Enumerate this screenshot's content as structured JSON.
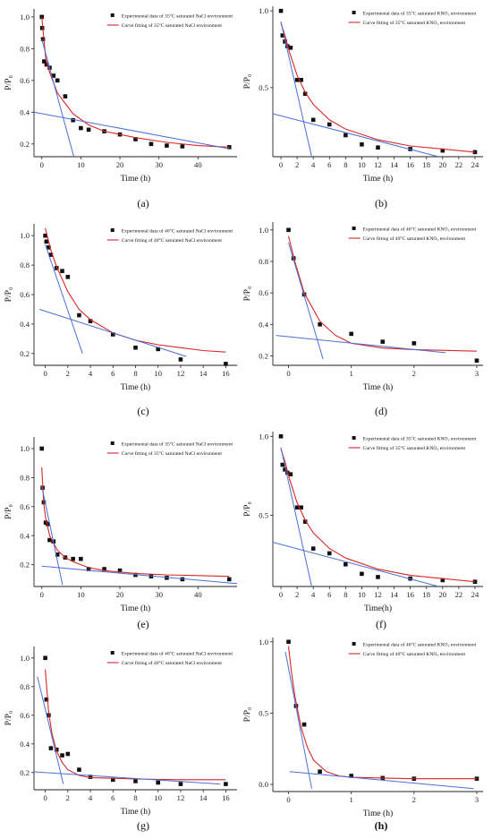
{
  "chart_data": [
    {
      "panel_label": "(a)",
      "type": "scatter",
      "xlabel": "Time (h)",
      "ylabel": "P/P₀",
      "xlim": [
        -2,
        50
      ],
      "ylim": [
        0.12,
        1.05
      ],
      "xticks": [
        0,
        10,
        20,
        30,
        40
      ],
      "yticks": [
        0.2,
        0.4,
        0.6,
        0.8,
        1.0
      ],
      "tick_decimals": 1,
      "legend": [
        "Experimental data of 35°C saturated NaCl environment",
        "Curve fitting of 35°C saturated NaCl environment"
      ],
      "legend_placement": "top-right",
      "series": [
        {
          "name": "Experimental data of 35°C saturated NaCl environment",
          "kind": "points",
          "x": [
            0,
            0.1,
            0.3,
            0.6,
            1.2,
            2,
            3,
            4,
            6,
            8,
            10,
            12,
            16,
            20,
            24,
            28,
            32,
            36,
            48
          ],
          "y": [
            1.0,
            0.93,
            0.86,
            0.72,
            0.7,
            0.68,
            0.63,
            0.6,
            0.5,
            0.35,
            0.3,
            0.29,
            0.28,
            0.26,
            0.23,
            0.2,
            0.19,
            0.185,
            0.18
          ]
        },
        {
          "name": "Curve fitting of 35°C saturated NaCl environment",
          "kind": "line",
          "x": [
            0,
            1,
            2,
            4,
            8,
            12,
            16,
            24,
            32,
            40,
            48
          ],
          "y": [
            1.0,
            0.74,
            0.65,
            0.52,
            0.39,
            0.32,
            0.28,
            0.24,
            0.21,
            0.19,
            0.18
          ]
        },
        {
          "kind": "tangent",
          "x": [
            0,
            8.2
          ],
          "y": [
            0.86,
            0.12
          ]
        },
        {
          "kind": "tangent",
          "x": [
            -2,
            48
          ],
          "y": [
            0.4,
            0.17
          ]
        }
      ]
    },
    {
      "panel_label": "(b)",
      "type": "scatter",
      "xlabel": "Time (h)",
      "ylabel": "P/P₀",
      "xlim": [
        -1,
        25
      ],
      "ylim": [
        0.05,
        1.03
      ],
      "xticks": [
        0,
        2,
        4,
        6,
        8,
        10,
        12,
        14,
        16,
        18,
        20,
        22,
        24
      ],
      "yticks": [
        0.5,
        1.0
      ],
      "tick_decimals": 1,
      "legend": [
        "Experimental data of 35°C saturated KNO₃ environment",
        "Curve fitting of 35°C saturated KNO₃ environment"
      ],
      "legend_placement": "top-right",
      "series": [
        {
          "name": "Experimental data of 35°C saturated KNO₃ environment",
          "kind": "points",
          "x": [
            0,
            0.2,
            0.5,
            0.8,
            1.2,
            2,
            2.5,
            3,
            4,
            6,
            8,
            10,
            12,
            16,
            20,
            24
          ],
          "y": [
            1.0,
            0.84,
            0.8,
            0.77,
            0.76,
            0.55,
            0.55,
            0.46,
            0.29,
            0.26,
            0.19,
            0.13,
            0.11,
            0.1,
            0.09,
            0.08
          ]
        },
        {
          "name": "Curve fitting of 35°C saturated KNO₃ environment",
          "kind": "line",
          "x": [
            0,
            0.5,
            1,
            2,
            3,
            4,
            6,
            8,
            12,
            16,
            20,
            24
          ],
          "y": [
            0.92,
            0.84,
            0.74,
            0.58,
            0.47,
            0.39,
            0.29,
            0.23,
            0.16,
            0.12,
            0.1,
            0.08
          ]
        },
        {
          "kind": "tangent",
          "x": [
            0,
            3.8
          ],
          "y": [
            0.93,
            0.05
          ]
        },
        {
          "kind": "tangent",
          "x": [
            -1,
            19.5
          ],
          "y": [
            0.33,
            0.05
          ]
        }
      ]
    },
    {
      "panel_label": "(c)",
      "type": "scatter",
      "xlabel": "Time (h)",
      "ylabel": "P/P₀",
      "xlim": [
        -1,
        17
      ],
      "ylim": [
        0.12,
        1.08
      ],
      "xticks": [
        0,
        2,
        4,
        6,
        8,
        10,
        12,
        14,
        16
      ],
      "yticks": [
        0.2,
        0.4,
        0.6,
        0.8,
        1.0
      ],
      "tick_decimals": 1,
      "legend": [
        "Experimental data of 40°C saturated NaCl environment",
        "Curve fitting of 40°C saturated NaCl environment"
      ],
      "legend_placement": "top-right",
      "series": [
        {
          "name": "Experimental data of 40°C saturated NaCl environment",
          "kind": "points",
          "x": [
            0,
            0.1,
            0.3,
            0.5,
            1,
            1.5,
            2,
            3,
            4,
            6,
            8,
            10,
            12,
            16
          ],
          "y": [
            1.0,
            0.96,
            0.92,
            0.87,
            0.78,
            0.76,
            0.72,
            0.46,
            0.42,
            0.33,
            0.24,
            0.23,
            0.16,
            0.13
          ]
        },
        {
          "name": "Curve fitting of 40°C saturated NaCl environment",
          "kind": "line",
          "x": [
            0,
            0.5,
            1,
            2,
            3,
            4,
            6,
            8,
            10,
            12,
            14,
            16
          ],
          "y": [
            1.05,
            0.9,
            0.79,
            0.62,
            0.5,
            0.43,
            0.34,
            0.29,
            0.26,
            0.24,
            0.22,
            0.21
          ]
        },
        {
          "kind": "tangent",
          "x": [
            0,
            3.3
          ],
          "y": [
            0.94,
            0.2
          ]
        },
        {
          "kind": "tangent",
          "x": [
            -0.5,
            12.5
          ],
          "y": [
            0.5,
            0.18
          ]
        }
      ]
    },
    {
      "panel_label": "(d)",
      "type": "scatter",
      "xlabel": "Time (h)",
      "ylabel": "P/P₀",
      "xlim": [
        -0.25,
        3.1
      ],
      "ylim": [
        0.14,
        1.05
      ],
      "xticks": [
        0,
        1,
        2,
        3
      ],
      "yticks": [
        0.2,
        0.4,
        0.6,
        0.8,
        1.0
      ],
      "tick_decimals": 1,
      "legend": [
        "Experimental data of 40°C saturated KNO₃ environment",
        "Curve fitting of 40°C saturated KNO₃ environment"
      ],
      "legend_placement": "top-right",
      "series": [
        {
          "name": "Experimental data of 40°C saturated KNO₃ environment",
          "kind": "points",
          "x": [
            0,
            0.08,
            0.25,
            0.5,
            1.0,
            1.5,
            2.0,
            3.0
          ],
          "y": [
            1.0,
            0.82,
            0.59,
            0.4,
            0.34,
            0.29,
            0.28,
            0.17
          ]
        },
        {
          "name": "Curve fitting of 40°C saturated KNO₃ environment",
          "kind": "line",
          "x": [
            0,
            0.1,
            0.25,
            0.5,
            0.75,
            1.0,
            1.5,
            2.0,
            2.5,
            3.0
          ],
          "y": [
            0.96,
            0.8,
            0.6,
            0.42,
            0.33,
            0.28,
            0.25,
            0.24,
            0.235,
            0.23
          ]
        },
        {
          "kind": "tangent",
          "x": [
            0,
            0.55
          ],
          "y": [
            0.92,
            0.18
          ]
        },
        {
          "kind": "tangent",
          "x": [
            -0.2,
            2.5
          ],
          "y": [
            0.33,
            0.22
          ]
        }
      ]
    },
    {
      "panel_label": "(e)",
      "type": "scatter",
      "xlabel": "Time (h)",
      "ylabel": "P/P₀",
      "xlim": [
        -2,
        50
      ],
      "ylim": [
        0.05,
        1.08
      ],
      "xticks": [
        0,
        10,
        20,
        30,
        40
      ],
      "yticks": [
        0.2,
        0.4,
        0.6,
        0.8,
        1.0
      ],
      "tick_decimals": 1,
      "legend": [
        "Experimental data of 35°C saturated NaCl environment",
        "Curve fitting of 35°C saturated NaCl environment"
      ],
      "legend_placement": "top-right",
      "series": [
        {
          "name": "Experimental data of 35°C saturated NaCl environment",
          "kind": "points",
          "x": [
            0,
            0.2,
            0.5,
            1,
            1.5,
            2,
            3,
            4,
            6,
            8,
            10,
            12,
            16,
            20,
            24,
            28,
            32,
            36,
            48
          ],
          "y": [
            1.0,
            0.73,
            0.63,
            0.49,
            0.48,
            0.37,
            0.36,
            0.27,
            0.25,
            0.24,
            0.24,
            0.17,
            0.17,
            0.16,
            0.13,
            0.12,
            0.11,
            0.1,
            0.1
          ]
        },
        {
          "name": "Curve fitting of 35°C saturated NaCl environment",
          "kind": "line",
          "x": [
            0,
            0.5,
            1,
            2,
            4,
            6,
            8,
            12,
            16,
            24,
            32,
            40,
            48
          ],
          "y": [
            0.87,
            0.62,
            0.52,
            0.4,
            0.3,
            0.25,
            0.22,
            0.18,
            0.16,
            0.14,
            0.13,
            0.125,
            0.12
          ]
        },
        {
          "kind": "tangent",
          "x": [
            0,
            5.3
          ],
          "y": [
            0.74,
            0.06
          ]
        },
        {
          "kind": "tangent",
          "x": [
            0,
            50
          ],
          "y": [
            0.19,
            0.07
          ]
        }
      ]
    },
    {
      "panel_label": "(f)",
      "type": "scatter",
      "xlabel": "Time(h)",
      "ylabel": "P/P₀",
      "xlim": [
        -1,
        25
      ],
      "ylim": [
        0.05,
        1.03
      ],
      "xticks": [
        0,
        2,
        4,
        6,
        8,
        10,
        12,
        14,
        16,
        18,
        20,
        22,
        24
      ],
      "yticks": [
        0.5,
        1.0
      ],
      "tick_decimals": 1,
      "legend": [
        "Experimental data of 35°C saturated KNO₃ environment",
        "Curve fitting of 35°C saturated KNO₃ environment"
      ],
      "legend_placement": "top-right",
      "series": [
        {
          "name": "Experimental data of 35°C saturated KNO₃ environment",
          "kind": "points",
          "x": [
            0,
            0.2,
            0.5,
            0.8,
            1.2,
            2,
            2.5,
            3,
            4,
            6,
            8,
            10,
            12,
            16,
            20,
            24
          ],
          "y": [
            1.0,
            0.82,
            0.79,
            0.77,
            0.76,
            0.55,
            0.55,
            0.46,
            0.29,
            0.26,
            0.19,
            0.13,
            0.11,
            0.1,
            0.09,
            0.08
          ]
        },
        {
          "name": "Curve fitting of 35°C saturated KNO₃ environment",
          "kind": "line",
          "x": [
            0,
            0.5,
            1,
            2,
            3,
            4,
            6,
            8,
            12,
            16,
            20,
            24
          ],
          "y": [
            0.92,
            0.84,
            0.74,
            0.58,
            0.47,
            0.39,
            0.29,
            0.23,
            0.16,
            0.12,
            0.1,
            0.08
          ]
        },
        {
          "kind": "tangent",
          "x": [
            0,
            3.8
          ],
          "y": [
            0.93,
            0.05
          ]
        },
        {
          "kind": "tangent",
          "x": [
            -1,
            19.5
          ],
          "y": [
            0.33,
            0.05
          ]
        }
      ]
    },
    {
      "panel_label": "(g)",
      "type": "scatter",
      "xlabel": "Time (h)",
      "ylabel": "P/P₀",
      "xlim": [
        -1,
        17
      ],
      "ylim": [
        0.08,
        1.08
      ],
      "xticks": [
        0,
        2,
        4,
        6,
        8,
        10,
        12,
        14,
        16
      ],
      "yticks": [
        0.2,
        0.4,
        0.6,
        0.8,
        1.0
      ],
      "tick_decimals": 1,
      "legend": [
        "Experimental data of 40°C saturated NaCl environment",
        "Curve fitting of 40°C saturated NaCl environment"
      ],
      "legend_placement": "top-right",
      "series": [
        {
          "name": "Experimental data of 40°C saturated NaCl environment",
          "kind": "points",
          "x": [
            0,
            0.1,
            0.3,
            0.5,
            1,
            1.5,
            2,
            3,
            4,
            6,
            8,
            10,
            12,
            16
          ],
          "y": [
            1.0,
            0.71,
            0.6,
            0.37,
            0.36,
            0.32,
            0.33,
            0.22,
            0.17,
            0.15,
            0.14,
            0.13,
            0.12,
            0.12
          ]
        },
        {
          "name": "Curve fitting of 40°C saturated NaCl environment",
          "kind": "line",
          "x": [
            0,
            0.3,
            0.6,
            1,
            1.5,
            2,
            3,
            4,
            6,
            8,
            12,
            16
          ],
          "y": [
            0.92,
            0.62,
            0.47,
            0.35,
            0.27,
            0.22,
            0.18,
            0.165,
            0.16,
            0.155,
            0.15,
            0.15
          ]
        },
        {
          "kind": "tangent",
          "x": [
            -0.7,
            1.6
          ],
          "y": [
            0.87,
            0.12
          ]
        },
        {
          "kind": "tangent",
          "x": [
            -1,
            15.5
          ],
          "y": [
            0.205,
            0.12
          ]
        }
      ]
    },
    {
      "panel_label": "(h)",
      "type": "scatter",
      "xlabel": "Time (h)",
      "ylabel": "P/P₀",
      "xlim": [
        -0.25,
        3.1
      ],
      "ylim": [
        -0.05,
        1.03
      ],
      "xticks": [
        0,
        1,
        2,
        3
      ],
      "yticks": [
        0.0,
        0.5,
        1.0
      ],
      "tick_decimals": 1,
      "legend": [
        "Experimental data of 40°C saturated KNO₃ environment",
        "Curve fitting of 40°C saturated KNO₃ environment"
      ],
      "legend_placement": "top-right",
      "series": [
        {
          "name": "Experimental data of 40°C saturated KNO₃ environment",
          "kind": "points",
          "x": [
            0,
            0.12,
            0.25,
            0.5,
            1.0,
            1.5,
            2.0,
            3.0
          ],
          "y": [
            1.0,
            0.55,
            0.42,
            0.09,
            0.06,
            0.045,
            0.04,
            0.04
          ]
        },
        {
          "name": "Curve fitting of 40°C saturated KNO₃ environment",
          "kind": "line",
          "x": [
            0,
            0.05,
            0.1,
            0.2,
            0.3,
            0.4,
            0.6,
            0.8,
            1.0,
            1.5,
            2.0,
            3.0
          ],
          "y": [
            0.97,
            0.78,
            0.62,
            0.4,
            0.26,
            0.17,
            0.09,
            0.06,
            0.05,
            0.045,
            0.04,
            0.04
          ]
        },
        {
          "kind": "tangent",
          "x": [
            -0.05,
            0.37
          ],
          "y": [
            0.93,
            -0.03
          ]
        },
        {
          "kind": "tangent",
          "x": [
            0.02,
            2.95
          ],
          "y": [
            0.09,
            -0.03
          ]
        }
      ]
    }
  ]
}
